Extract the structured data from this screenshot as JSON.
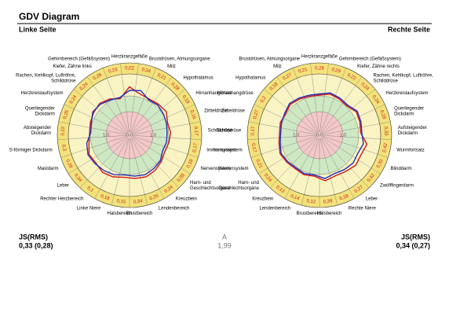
{
  "header": {
    "title": "GDV Diagram"
  },
  "chart_data": [
    {
      "type": "radar",
      "title": "Linke Seite",
      "categories": [
        "Herzkranzgefäße",
        "Brustdrüsen, Atmungsorgane",
        "Milz",
        "Hypothalamus",
        "Hirnanhangdrüse",
        "Zirbeldrüse",
        "Schilddrüse",
        "Immunsystem",
        "Nervensystem",
        [
          "Harn- und",
          "Geschlechtsorgane"
        ],
        "Kreuzbein",
        "Lendenbereich",
        "Brustbereich",
        "Halsbereich",
        "Linke Niere",
        "Rechter Herzbereich",
        "Leber",
        "Mastdarm",
        "S-förmiger Dickdarm",
        [
          "Absteigender",
          "Dickdarm"
        ],
        [
          "Querliegender",
          "Dickdarm"
        ],
        "Herzkreislaufsystem",
        [
          "Rachen, Kehlkopf, Luftröhre,",
          "Schilddrüse"
        ],
        "Kiefer, Zähne links",
        "Gehirnbereich (Gefäßsystem)"
      ],
      "ring": {
        "values": [
          0.02,
          0.34,
          0.21,
          0.28,
          0.19,
          0.16,
          0.17,
          0.17,
          0.18,
          0.09,
          0.24,
          0.25,
          0.34,
          0.15,
          0.18,
          0.1,
          0.34,
          0.28,
          0.3,
          0.22,
          0.25,
          0.24,
          0.24,
          0.26,
          0.23
        ],
        "value_labels": [
          "0,02",
          "0,34",
          "0,21",
          "0,28",
          "0,19",
          "0,16",
          "0,17",
          "0,17",
          "0,18",
          "0,09",
          "0,24",
          "0,25",
          "0,34",
          "0,15",
          "0,18",
          "0,1",
          "0,34",
          "0,28",
          "0,3",
          "0,22",
          "0,25",
          "0,24",
          "0,24",
          "0,26",
          "0,23"
        ]
      },
      "rlim": [
        0,
        2.6
      ],
      "rticks": [
        {
          "value": 0,
          "label": "0,0"
        },
        {
          "value": 1,
          "label": "1,0"
        }
      ],
      "series": [
        {
          "color": "#d01818",
          "values": [
            2.05,
            1.8,
            1.75,
            1.8,
            1.85,
            1.7,
            1.75,
            1.7,
            1.65,
            1.75,
            1.85,
            1.9,
            1.85,
            1.8,
            1.9,
            1.95,
            1.85,
            1.9,
            1.75,
            1.7,
            1.75,
            1.8,
            1.85,
            1.75,
            1.6
          ]
        },
        {
          "color": "#2030c0",
          "values": [
            1.9,
            1.95,
            1.7,
            1.75,
            1.7,
            1.65,
            1.6,
            1.6,
            1.55,
            1.7,
            1.75,
            1.8,
            1.75,
            1.7,
            1.8,
            1.85,
            1.9,
            1.95,
            1.85,
            1.65,
            1.7,
            1.85,
            1.8,
            1.7,
            1.65
          ]
        }
      ]
    },
    {
      "type": "radar",
      "title": "Rechte Seite",
      "categories": [
        "Herzkranzgefäße",
        "Gehirnbereich (Gefäßsystem)",
        "Kiefer, Zähne rechts",
        [
          "Rachen, Kehlkopf, Luftröhre,",
          "Schilddrüse"
        ],
        "Herzkreislaufsystem",
        [
          "Querliegender",
          "Dickdarm"
        ],
        [
          "Aufsteigender",
          "Dickdarm"
        ],
        "Wurmfortsatz",
        "Blinddarm",
        "Zwölffingerdarm",
        "Leber",
        "Rechte Niere",
        "Halsbereich",
        "Brustbereich",
        "Lendenbereich",
        "Kreuzbein",
        [
          "Harn- und",
          "Geschlechtsorgane"
        ],
        "Nervensystem",
        "Immunsystem",
        "Schilddrüse",
        "Zirbeldrüse",
        "Hirnanhangdrüse",
        "Hypothalamus",
        "Milz",
        "Brustdrüsen, Atmungsorgane"
      ],
      "ring": {
        "values": [
          0.26,
          0.29,
          0.22,
          0.24,
          0.24,
          0.28,
          0.33,
          0.42,
          0.33,
          0.42,
          0.27,
          0.18,
          0.39,
          0.12,
          0.14,
          0.13,
          0.24,
          0.21,
          0.17,
          0.17,
          0.27,
          0.2,
          0.18,
          0.27,
          0.21
        ],
        "value_labels": [
          "0,26",
          "0,29",
          "0,22",
          "0,24",
          "0,24",
          "0,28",
          "0,33",
          "0,42",
          "0,33",
          "0,42",
          "0,27",
          "0,18",
          "0,39",
          "0,12",
          "0,14",
          "0,13",
          "0,24",
          "0,21",
          "0,17",
          "0,17",
          "0,27",
          "0,2",
          "0,18",
          "0,27",
          "0,21"
        ]
      },
      "rlim": [
        0,
        2.6
      ],
      "rticks": [
        {
          "value": 0,
          "label": "0,0"
        },
        {
          "value": 1,
          "label": "1,0"
        }
      ],
      "series": [
        {
          "color": "#d01818",
          "values": [
            1.7,
            1.8,
            1.75,
            1.7,
            1.85,
            1.8,
            1.75,
            2.05,
            1.95,
            2.0,
            1.9,
            1.85,
            1.95,
            1.75,
            1.8,
            1.75,
            1.8,
            1.85,
            1.75,
            1.7,
            1.75,
            1.7,
            1.8,
            1.75,
            1.7
          ]
        },
        {
          "color": "#2030c0",
          "values": [
            1.75,
            1.85,
            1.8,
            1.75,
            1.9,
            1.85,
            1.8,
            1.9,
            1.8,
            1.85,
            1.8,
            1.75,
            1.85,
            1.7,
            1.75,
            1.7,
            1.75,
            1.8,
            1.7,
            1.65,
            1.7,
            1.75,
            1.85,
            1.8,
            1.75
          ]
        }
      ]
    }
  ],
  "summary": {
    "left": {
      "label": "JS(RMS)",
      "value": "0,33 (0,28)"
    },
    "center": {
      "label": "A",
      "value": "1,99"
    },
    "right": {
      "label": "JS(RMS)",
      "value": "0,34 (0,27)"
    }
  }
}
